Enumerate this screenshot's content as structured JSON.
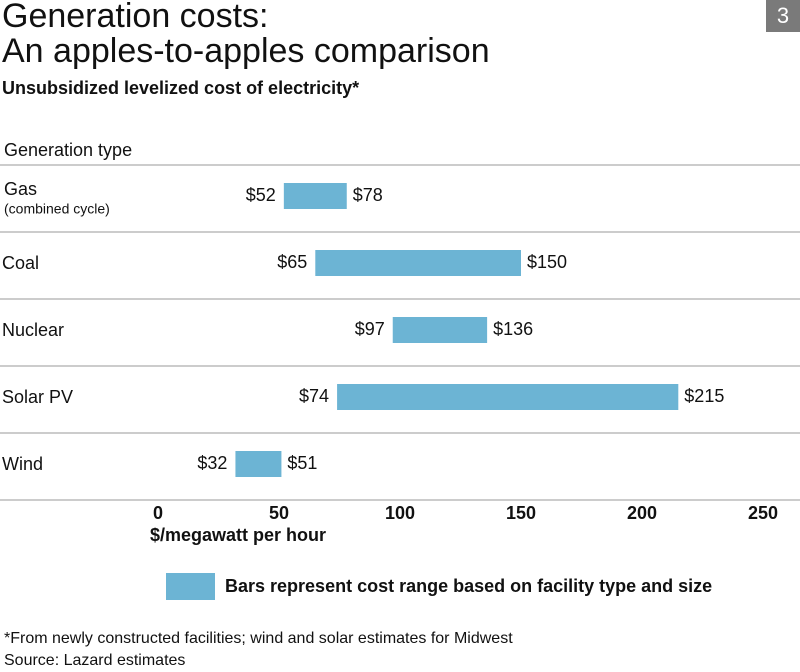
{
  "badge": "3",
  "chart_data": {
    "type": "range-bar",
    "title": [
      "Generation costs:",
      "An apples-to-apples comparison"
    ],
    "subtitle": "Unsubsidized levelized cost of electricity*",
    "category_axis_label": "Generation type",
    "categories": [
      "Gas",
      "Coal",
      "Nuclear",
      "Solar PV",
      "Wind"
    ],
    "category_notes": [
      "(combined cycle)",
      null,
      null,
      null,
      null
    ],
    "low": [
      52,
      65,
      97,
      74,
      32
    ],
    "high": [
      78,
      150,
      136,
      215,
      51
    ],
    "low_labels": [
      "$52",
      "$65",
      "$97",
      "$74",
      "$32"
    ],
    "high_labels": [
      "$78",
      "$150",
      "$136",
      "$215",
      "$51"
    ],
    "color": "#6cb4d4",
    "xlim": [
      0,
      250
    ],
    "xticks": [
      0,
      50,
      100,
      150,
      200,
      250
    ],
    "xlabel": "$/megawatt per hour",
    "legend": {
      "label": "Bars represent cost range based on facility type and size",
      "color": "#6cb4d4"
    },
    "footnotes": [
      "*From newly constructed facilities; wind and solar estimates for Midwest",
      "Source: Lazard estimates"
    ]
  }
}
